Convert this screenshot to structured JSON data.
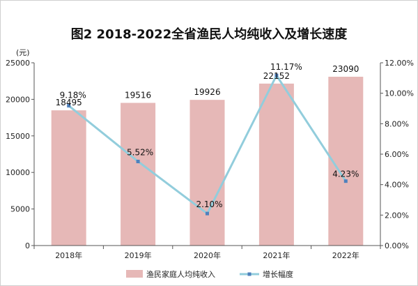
{
  "chart_data": {
    "type": "bar+line",
    "title": "图2   2018-2022全省渔民人均纯收入及增长速度",
    "y_unit_left": "(元)",
    "categories": [
      "2018年",
      "2019年",
      "2020年",
      "2021年",
      "2022年"
    ],
    "series": [
      {
        "name": "渔民家庭人均纯收入",
        "type": "bar",
        "axis": "left",
        "color": "#e6b8b7",
        "values": [
          18495,
          19516,
          19926,
          22152,
          23090
        ],
        "labels": [
          "18495",
          "19516",
          "19926",
          "22152",
          "23090"
        ]
      },
      {
        "name": "增长幅度",
        "type": "line",
        "axis": "right",
        "color": "#92cddc",
        "values": [
          9.18,
          5.52,
          2.1,
          11.17,
          4.23
        ],
        "labels": [
          "9.18%",
          "5.52%",
          "2.10%",
          "11.17%",
          "4.23%"
        ]
      }
    ],
    "ylim_left": [
      0,
      25000
    ],
    "yticks_left": [
      0,
      5000,
      10000,
      15000,
      20000,
      25000
    ],
    "ylim_right": [
      0,
      12
    ],
    "yticks_right": [
      "0.00%",
      "2.00%",
      "4.00%",
      "6.00%",
      "8.00%",
      "10.00%",
      "12.00%"
    ],
    "legend_position": "bottom",
    "grid": false
  }
}
